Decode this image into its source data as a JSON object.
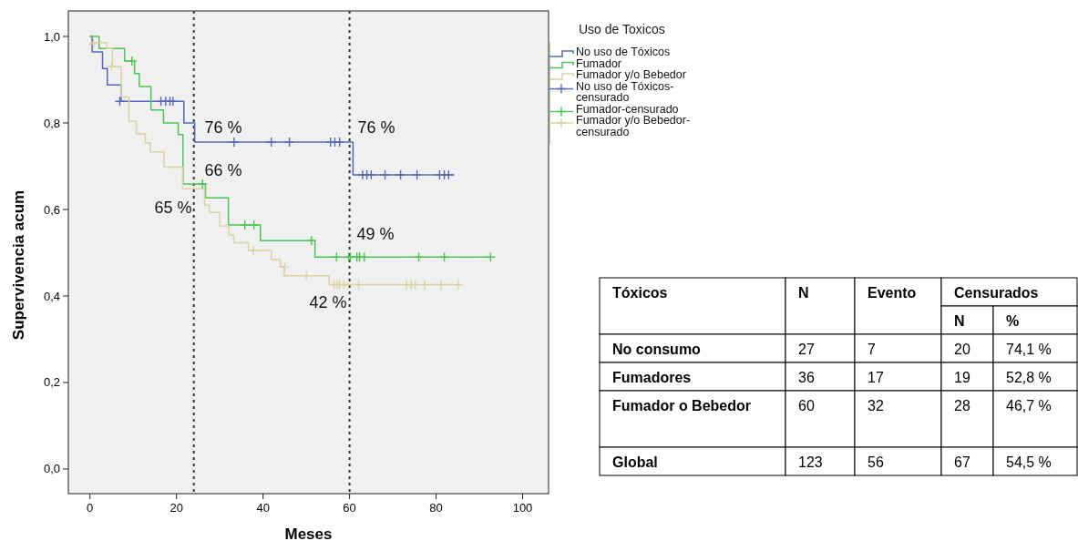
{
  "chart_data": [
    {
      "type": "step",
      "xlabel": "Meses",
      "ylabel": "Supervivencia acum",
      "legend_title": "Uso de Toxicos",
      "legend": "right",
      "grid": false,
      "xlim": [
        -5,
        106
      ],
      "ylim": [
        -0.057,
        1.059
      ],
      "xticks": [
        0,
        20,
        40,
        60,
        80,
        100
      ],
      "yticks": [
        {
          "value": 0,
          "label": "0,0"
        },
        {
          "value": 0.2,
          "label": "0,2"
        },
        {
          "value": 0.4,
          "label": "0,4"
        },
        {
          "value": 0.6,
          "label": "0,6"
        },
        {
          "value": 0.8,
          "label": "0,8"
        },
        {
          "value": 1,
          "label": "1,0"
        }
      ],
      "series": [
        {
          "name": "No uso de Tóxicos",
          "type": "step",
          "color": "#5568b8",
          "x": [
            0,
            0.5,
            2.9,
            4,
            7.2,
            21.7,
            24.2,
            60.8,
            84.2
          ],
          "values": [
            1,
            0.964,
            0.926,
            0.888,
            0.85,
            0.8,
            0.756,
            0.68,
            0.68
          ]
        },
        {
          "name": "Fumador",
          "type": "step",
          "color": "#4cc454",
          "x": [
            0,
            2.1,
            8,
            10.3,
            11.4,
            14.1,
            17,
            20.4,
            21.5,
            26.7,
            32,
            39.4,
            52,
            92.6
          ],
          "values": [
            1,
            0.972,
            0.943,
            0.914,
            0.884,
            0.83,
            0.8,
            0.773,
            0.659,
            0.627,
            0.564,
            0.528,
            0.49,
            0.49
          ]
        },
        {
          "name": "Fumador y/o Bebedor",
          "type": "step",
          "color": "#d9d4a4",
          "x": [
            0,
            3.8,
            5.2,
            7.2,
            9,
            10.7,
            12.8,
            13.9,
            17.1,
            21.4,
            26.5,
            27.6,
            30,
            32.1,
            33.2,
            36.6,
            41.9,
            44,
            44.9,
            55.3,
            85.1
          ],
          "values": [
            0.986,
            0.972,
            0.93,
            0.86,
            0.804,
            0.775,
            0.754,
            0.733,
            0.698,
            0.648,
            0.61,
            0.593,
            0.562,
            0.541,
            0.523,
            0.505,
            0.484,
            0.467,
            0.447,
            0.426,
            0.426
          ]
        },
        {
          "name": "No uso de Tóxicos-censurado",
          "type": "scatter",
          "marker": "cross",
          "color": "#5568b8",
          "x": [
            6.9,
            16.4,
            17.5,
            18.5,
            19.2,
            33.3,
            41.9,
            46.1,
            55.6,
            56.6,
            57.7,
            63,
            64,
            65,
            68.2,
            71.8,
            75.6,
            80.8,
            81.9,
            82.9
          ],
          "values": [
            0.85,
            0.85,
            0.85,
            0.85,
            0.85,
            0.756,
            0.756,
            0.756,
            0.756,
            0.756,
            0.756,
            0.68,
            0.68,
            0.68,
            0.68,
            0.68,
            0.68,
            0.68,
            0.68,
            0.68
          ]
        },
        {
          "name": "Fumador-censurado",
          "type": "scatter",
          "marker": "cross",
          "color": "#4cc454",
          "x": [
            9.7,
            26,
            35.8,
            37.9,
            51.2,
            57,
            59.8,
            60.2,
            61.7,
            62.3,
            63.4,
            76,
            81.9,
            92.6
          ],
          "values": [
            0.943,
            0.659,
            0.564,
            0.564,
            0.528,
            0.49,
            0.49,
            0.49,
            0.49,
            0.49,
            0.49,
            0.49,
            0.49,
            0.49
          ]
        },
        {
          "name": "Fumador y/o Bebedor-censurado",
          "type": "scatter",
          "marker": "cross",
          "color": "#d9d4a4",
          "x": [
            0.8,
            5,
            37.8,
            45,
            50,
            56.4,
            57.1,
            57.7,
            58.7,
            59.7,
            62.1,
            73.2,
            74.3,
            75.2,
            77.4,
            81.1,
            85.1
          ],
          "values": [
            0.983,
            0.93,
            0.505,
            0.467,
            0.447,
            0.426,
            0.426,
            0.426,
            0.426,
            0.426,
            0.426,
            0.426,
            0.426,
            0.426,
            0.426,
            0.426,
            0.426
          ]
        }
      ],
      "ref_lines": [
        {
          "axis": "x",
          "value": 24,
          "color": "#333333",
          "line_style": "dotted"
        },
        {
          "axis": "x",
          "value": 60,
          "color": "#333333",
          "line_style": "dotted"
        }
      ],
      "annotations": [
        "76 %",
        "76 %",
        "66 %",
        "65 %",
        "49 %",
        "42 %"
      ]
    },
    {
      "type": "other",
      "annotations": [
        "Tóxicos",
        "N",
        "Evento",
        "Censurados",
        "N",
        "%",
        "No consumo",
        "27",
        "7",
        "20",
        "74,1 %",
        "Fumadores",
        "36",
        "17",
        "19",
        "52,8 %",
        "Fumador o Bebedor",
        "60",
        "32",
        "28",
        "46,7 %",
        "Global",
        "123",
        "56",
        "67",
        "54,5 %"
      ]
    }
  ]
}
